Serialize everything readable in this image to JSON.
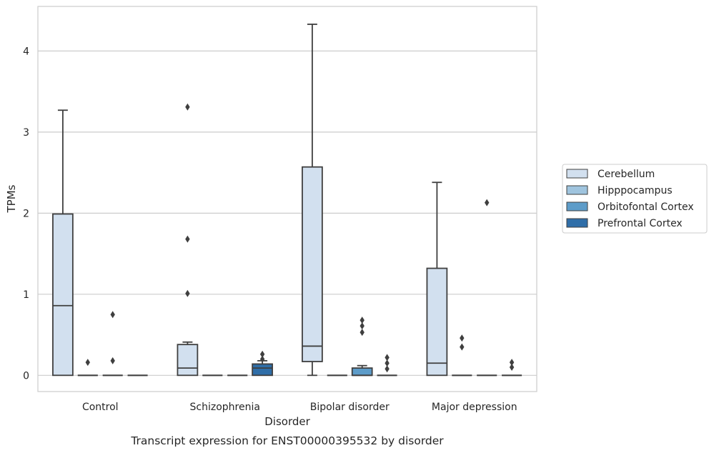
{
  "chart_data": {
    "type": "box",
    "caption": "Transcript expression for ENST00000395532 by disorder",
    "xlabel": "Disorder",
    "ylabel": "TPMs",
    "ylim": [
      -0.2,
      4.55
    ],
    "yticks": [
      0,
      1,
      2,
      3,
      4
    ],
    "grid": "horizontal",
    "legend_position": "right",
    "categories": [
      "Control",
      "Schizophrenia",
      "Bipolar disorder",
      "Major depression"
    ],
    "series": [
      {
        "name": "Cerebellum",
        "color": "#d2e0ef",
        "boxes": [
          {
            "min": 0,
            "q1": 0,
            "median": 0.86,
            "q3": 1.99,
            "max": 3.27,
            "outliers": []
          },
          {
            "min": 0,
            "q1": 0,
            "median": 0.09,
            "q3": 0.38,
            "max": 0.41,
            "outliers": [
              1.01,
              1.68,
              3.31
            ]
          },
          {
            "min": 0,
            "q1": 0.17,
            "median": 0.36,
            "q3": 2.57,
            "max": 4.33,
            "outliers": []
          },
          {
            "min": 0,
            "q1": 0,
            "median": 0.15,
            "q3": 1.32,
            "max": 2.38,
            "outliers": []
          }
        ]
      },
      {
        "name": "Hipppocampus",
        "color": "#9fc4de",
        "boxes": [
          {
            "min": 0,
            "q1": 0,
            "median": 0,
            "q3": 0,
            "max": 0,
            "outliers": [
              0.16
            ]
          },
          {
            "min": 0,
            "q1": 0,
            "median": 0,
            "q3": 0,
            "max": 0,
            "outliers": []
          },
          {
            "min": 0,
            "q1": 0,
            "median": 0,
            "q3": 0,
            "max": 0,
            "outliers": []
          },
          {
            "min": 0,
            "q1": 0,
            "median": 0,
            "q3": 0,
            "max": 0,
            "outliers": [
              0.35,
              0.46
            ]
          }
        ]
      },
      {
        "name": "Orbitofontal Cortex",
        "color": "#5d9cc9",
        "boxes": [
          {
            "min": 0,
            "q1": 0,
            "median": 0,
            "q3": 0,
            "max": 0,
            "outliers": [
              0.18,
              0.75
            ]
          },
          {
            "min": 0,
            "q1": 0,
            "median": 0,
            "q3": 0,
            "max": 0,
            "outliers": []
          },
          {
            "min": 0,
            "q1": 0,
            "median": 0,
            "q3": 0.09,
            "max": 0.12,
            "outliers": [
              0.53,
              0.61,
              0.68
            ]
          },
          {
            "min": 0,
            "q1": 0,
            "median": 0,
            "q3": 0,
            "max": 0,
            "outliers": [
              2.13
            ]
          }
        ]
      },
      {
        "name": "Prefrontal Cortex",
        "color": "#2f6ea8",
        "boxes": [
          {
            "min": 0,
            "q1": 0,
            "median": 0,
            "q3": 0,
            "max": 0,
            "outliers": []
          },
          {
            "min": 0,
            "q1": 0,
            "median": 0.09,
            "q3": 0.14,
            "max": 0.18,
            "outliers": [
              0.2,
              0.26
            ]
          },
          {
            "min": 0,
            "q1": 0,
            "median": 0,
            "q3": 0,
            "max": 0,
            "outliers": [
              0.08,
              0.15,
              0.22
            ]
          },
          {
            "min": 0,
            "q1": 0,
            "median": 0,
            "q3": 0,
            "max": 0,
            "outliers": [
              0.1,
              0.16
            ]
          }
        ]
      }
    ]
  }
}
